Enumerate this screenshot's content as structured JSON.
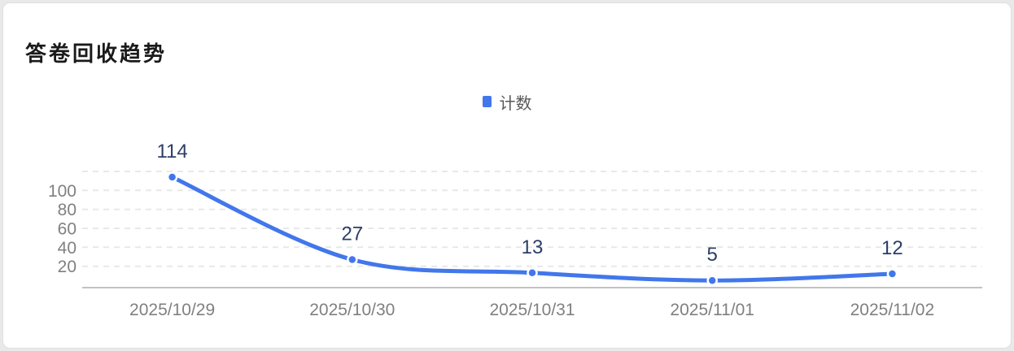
{
  "card": {
    "title": "答卷回收趋势"
  },
  "legend": {
    "items": [
      {
        "label": "计数",
        "color": "#4277EB"
      }
    ]
  },
  "chart_data": {
    "type": "line",
    "smooth": true,
    "title": "答卷回收趋势",
    "legend_entries": [
      "计数"
    ],
    "legend_position": "top-center",
    "categories": [
      "2025/10/29",
      "2025/10/30",
      "2025/10/31",
      "2025/11/01",
      "2025/11/02"
    ],
    "series": [
      {
        "name": "计数",
        "values": [
          114,
          27,
          13,
          5,
          12
        ]
      }
    ],
    "data_labels": [
      114,
      27,
      13,
      5,
      12
    ],
    "xlabel": "",
    "ylabel": "",
    "ylim": [
      0,
      120
    ],
    "ytick_labels": [
      20,
      40,
      60,
      80,
      100
    ],
    "grid_values": [
      20,
      40,
      60,
      80,
      100,
      120
    ],
    "grid": true,
    "grid_style": "dashed",
    "colors": {
      "line": "#4277EB",
      "point_fill": "#4277EB",
      "point_border": "#ffffff",
      "data_label": "#2C3E68",
      "axis_label": "#808080",
      "gridline": "#e8e8e8",
      "axis_line": "#c2c2c2"
    }
  }
}
